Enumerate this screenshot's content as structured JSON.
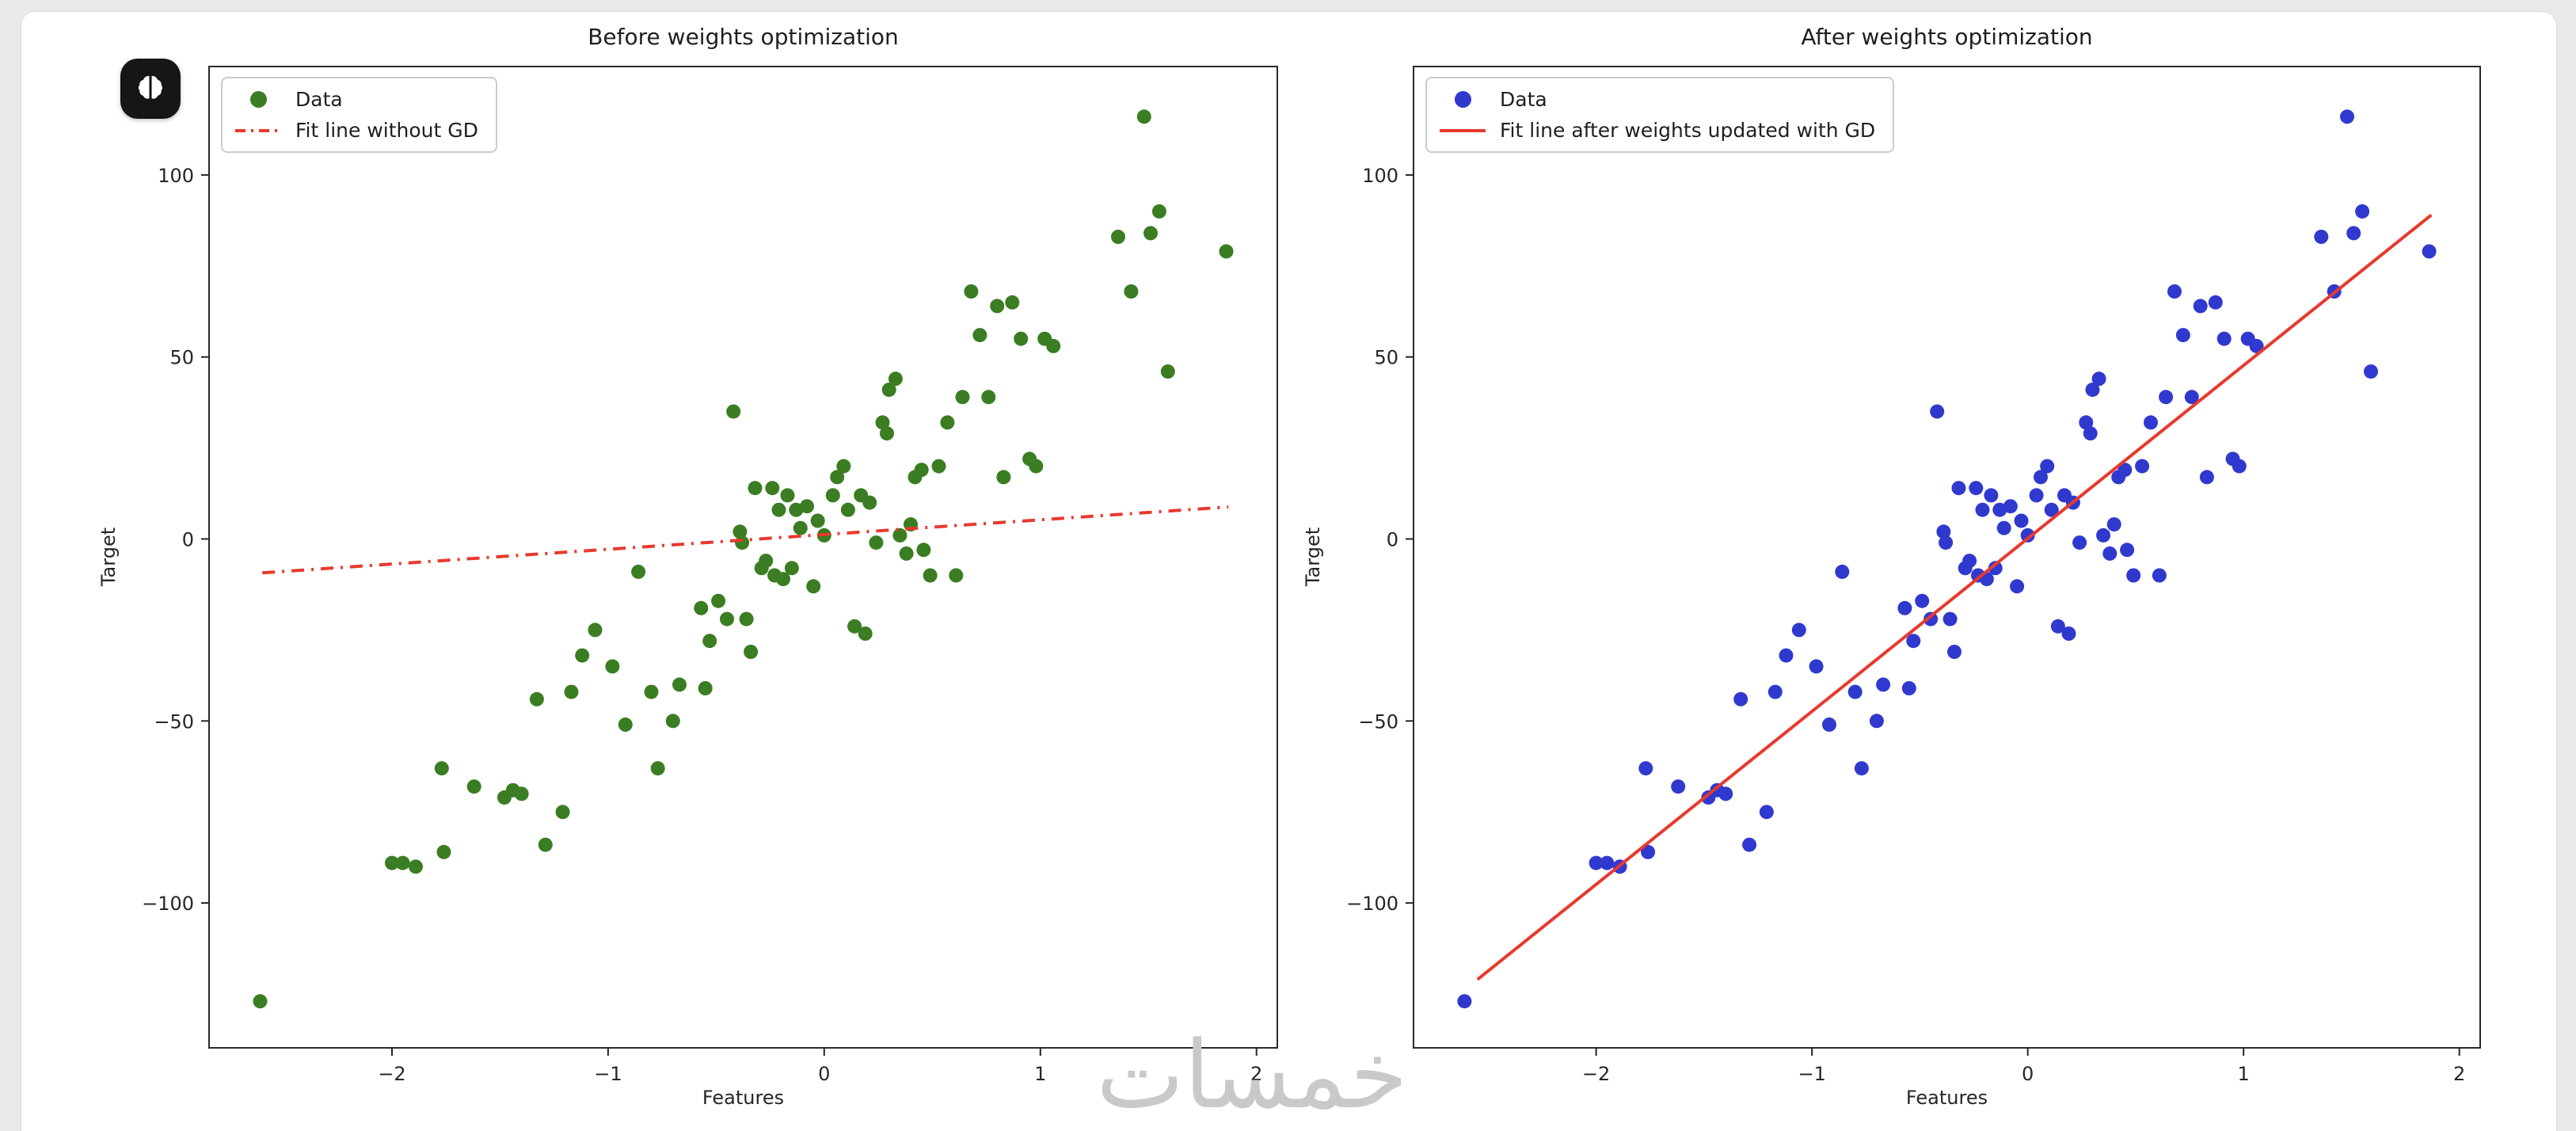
{
  "page": {
    "watermark": "خمسات",
    "badge_icon": "brain-icon"
  },
  "chart_data": {
    "type": "scatter",
    "xlabel": "Features",
    "ylabel": "Target",
    "xlim": [
      -2.85,
      2.1
    ],
    "ylim": [
      -140,
      130
    ],
    "xticks": [
      -2,
      -1,
      0,
      1,
      2
    ],
    "yticks": [
      -100,
      -50,
      0,
      50,
      100
    ],
    "grid": false,
    "legend_position": "upper-left",
    "points": [
      [
        -2.61,
        -127
      ],
      [
        -2.0,
        -89
      ],
      [
        -1.95,
        -89
      ],
      [
        -1.89,
        -90
      ],
      [
        -1.77,
        -63
      ],
      [
        -1.76,
        -86
      ],
      [
        -1.62,
        -68
      ],
      [
        -1.48,
        -71
      ],
      [
        -1.44,
        -69
      ],
      [
        -1.4,
        -70
      ],
      [
        -1.33,
        -44
      ],
      [
        -1.29,
        -84
      ],
      [
        -1.21,
        -75
      ],
      [
        -1.17,
        -42
      ],
      [
        -1.12,
        -32
      ],
      [
        -1.06,
        -25
      ],
      [
        -0.98,
        -35
      ],
      [
        -0.92,
        -51
      ],
      [
        -0.86,
        -9
      ],
      [
        -0.8,
        -42
      ],
      [
        -0.77,
        -63
      ],
      [
        -0.7,
        -50
      ],
      [
        -0.67,
        -40
      ],
      [
        -0.57,
        -19
      ],
      [
        -0.55,
        -41
      ],
      [
        -0.53,
        -28
      ],
      [
        -0.49,
        -17
      ],
      [
        -0.45,
        -22
      ],
      [
        -0.42,
        35
      ],
      [
        -0.39,
        2
      ],
      [
        -0.38,
        -1
      ],
      [
        -0.36,
        -22
      ],
      [
        -0.34,
        -31
      ],
      [
        -0.32,
        14
      ],
      [
        -0.29,
        -8
      ],
      [
        -0.27,
        -6
      ],
      [
        -0.24,
        14
      ],
      [
        -0.23,
        -10
      ],
      [
        -0.21,
        8
      ],
      [
        -0.19,
        -11
      ],
      [
        -0.17,
        12
      ],
      [
        -0.15,
        -8
      ],
      [
        -0.13,
        8
      ],
      [
        -0.11,
        3
      ],
      [
        -0.08,
        9
      ],
      [
        -0.05,
        -13
      ],
      [
        -0.03,
        5
      ],
      [
        0,
        1
      ],
      [
        0.04,
        12
      ],
      [
        0.06,
        17
      ],
      [
        0.09,
        20
      ],
      [
        0.11,
        8
      ],
      [
        0.14,
        -24
      ],
      [
        0.17,
        12
      ],
      [
        0.19,
        -26
      ],
      [
        0.21,
        10
      ],
      [
        0.24,
        -1
      ],
      [
        0.27,
        32
      ],
      [
        0.29,
        29
      ],
      [
        0.3,
        41
      ],
      [
        0.33,
        44
      ],
      [
        0.35,
        1
      ],
      [
        0.38,
        -4
      ],
      [
        0.4,
        4
      ],
      [
        0.42,
        17
      ],
      [
        0.45,
        19
      ],
      [
        0.46,
        -3
      ],
      [
        0.49,
        -10
      ],
      [
        0.53,
        20
      ],
      [
        0.57,
        32
      ],
      [
        0.61,
        -10
      ],
      [
        0.64,
        39
      ],
      [
        0.68,
        68
      ],
      [
        0.72,
        56
      ],
      [
        0.76,
        39
      ],
      [
        0.8,
        64
      ],
      [
        0.83,
        17
      ],
      [
        0.87,
        65
      ],
      [
        0.91,
        55
      ],
      [
        0.95,
        22
      ],
      [
        0.98,
        20
      ],
      [
        1.02,
        55
      ],
      [
        1.06,
        53
      ],
      [
        1.36,
        83
      ],
      [
        1.42,
        68
      ],
      [
        1.48,
        116
      ],
      [
        1.51,
        84
      ],
      [
        1.55,
        90
      ],
      [
        1.59,
        46
      ],
      [
        1.86,
        79
      ]
    ],
    "panels": [
      {
        "title": "Before weights optimization",
        "point_color": "#3a7d22",
        "legend": [
          {
            "label": "Data",
            "marker": "dot",
            "color": "#3a7d22"
          },
          {
            "label": "Fit line without GD",
            "marker": "dashdot-line",
            "color": "#e8392e"
          }
        ],
        "fit_line": {
          "x1": -2.6,
          "y1": -9.3,
          "x2": 1.87,
          "y2": 8.8,
          "style": "dashdot",
          "color": "#e8392e"
        }
      },
      {
        "title": "After weights optimization",
        "point_color": "#3039ce",
        "legend": [
          {
            "label": "Data",
            "marker": "dot",
            "color": "#3039ce"
          },
          {
            "label": "Fit line after weights updated with GD",
            "marker": "solid-line",
            "color": "#e8392e"
          }
        ],
        "fit_line": {
          "x1": -2.55,
          "y1": -121,
          "x2": 1.87,
          "y2": 89,
          "style": "solid",
          "color": "#e8392e"
        }
      }
    ]
  }
}
